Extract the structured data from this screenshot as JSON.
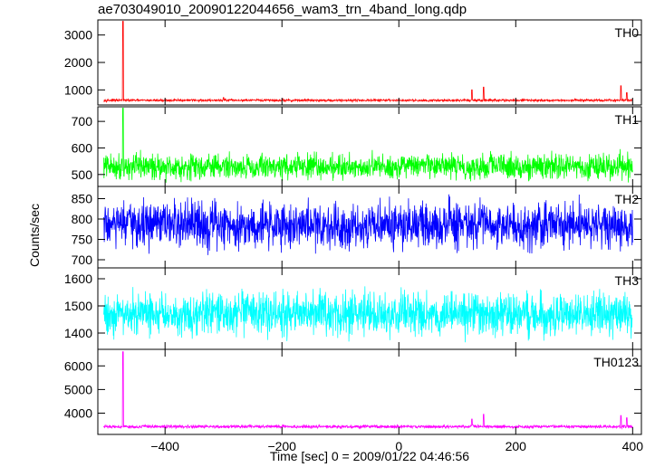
{
  "chart_data": {
    "type": "line",
    "title": "ae703049010_20090122044656_wam3_trn_4band_long.qdp",
    "xlabel": "Time [sec] 0 = 2009/01/22 04:46:56",
    "ylabel": "Counts/sec",
    "xlim": [
      -515,
      415
    ],
    "xticks": [
      -400,
      -200,
      0,
      200,
      400
    ],
    "x_tick_labels": [
      "−400",
      "−200",
      "0",
      "200",
      "400"
    ],
    "grid": false,
    "panels": [
      {
        "name": "TH0",
        "color": "#ff0000",
        "ylim": [
          450,
          3550
        ],
        "yticks": [
          1000,
          2000,
          3000
        ],
        "y_tick_labels": [
          "1000",
          "2000",
          "3000"
        ],
        "data_range": [
          -505,
          400
        ],
        "baseline": 620,
        "noise": 30,
        "spikes": [
          [
            -472,
            3500
          ],
          [
            -300,
            720
          ],
          [
            125,
            1000
          ],
          [
            145,
            1100
          ],
          [
            380,
            1150
          ],
          [
            390,
            900
          ]
        ]
      },
      {
        "name": "TH1",
        "color": "#00ff00",
        "ylim": [
          455,
          755
        ],
        "yticks": [
          500,
          600,
          700
        ],
        "y_tick_labels": [
          "500",
          "600",
          "700"
        ],
        "data_range": [
          -505,
          400
        ],
        "baseline": 530,
        "noise": 33,
        "spikes": [
          [
            -472,
            750
          ]
        ]
      },
      {
        "name": "TH2",
        "color": "#0000ff",
        "ylim": [
          680,
          880
        ],
        "yticks": [
          700,
          750,
          800,
          850
        ],
        "y_tick_labels": [
          "700",
          "750",
          "800",
          "850"
        ],
        "data_range": [
          -505,
          400
        ],
        "baseline": 785,
        "noise": 40,
        "spikes": []
      },
      {
        "name": "TH3",
        "color": "#00ffff",
        "ylim": [
          1340,
          1640
        ],
        "yticks": [
          1400,
          1500,
          1600
        ],
        "y_tick_labels": [
          "1400",
          "1500",
          "1600"
        ],
        "data_range": [
          -505,
          400
        ],
        "baseline": 1470,
        "noise": 55,
        "spikes": []
      },
      {
        "name": "TH0123",
        "color": "#ff00ff",
        "ylim": [
          3100,
          6700
        ],
        "yticks": [
          4000,
          5000,
          6000
        ],
        "y_tick_labels": [
          "4000",
          "5000",
          "6000"
        ],
        "data_range": [
          -505,
          400
        ],
        "baseline": 3430,
        "noise": 45,
        "spikes": [
          [
            -472,
            6600
          ],
          [
            125,
            3750
          ],
          [
            145,
            3950
          ],
          [
            380,
            3900
          ],
          [
            390,
            3800
          ]
        ]
      }
    ]
  }
}
